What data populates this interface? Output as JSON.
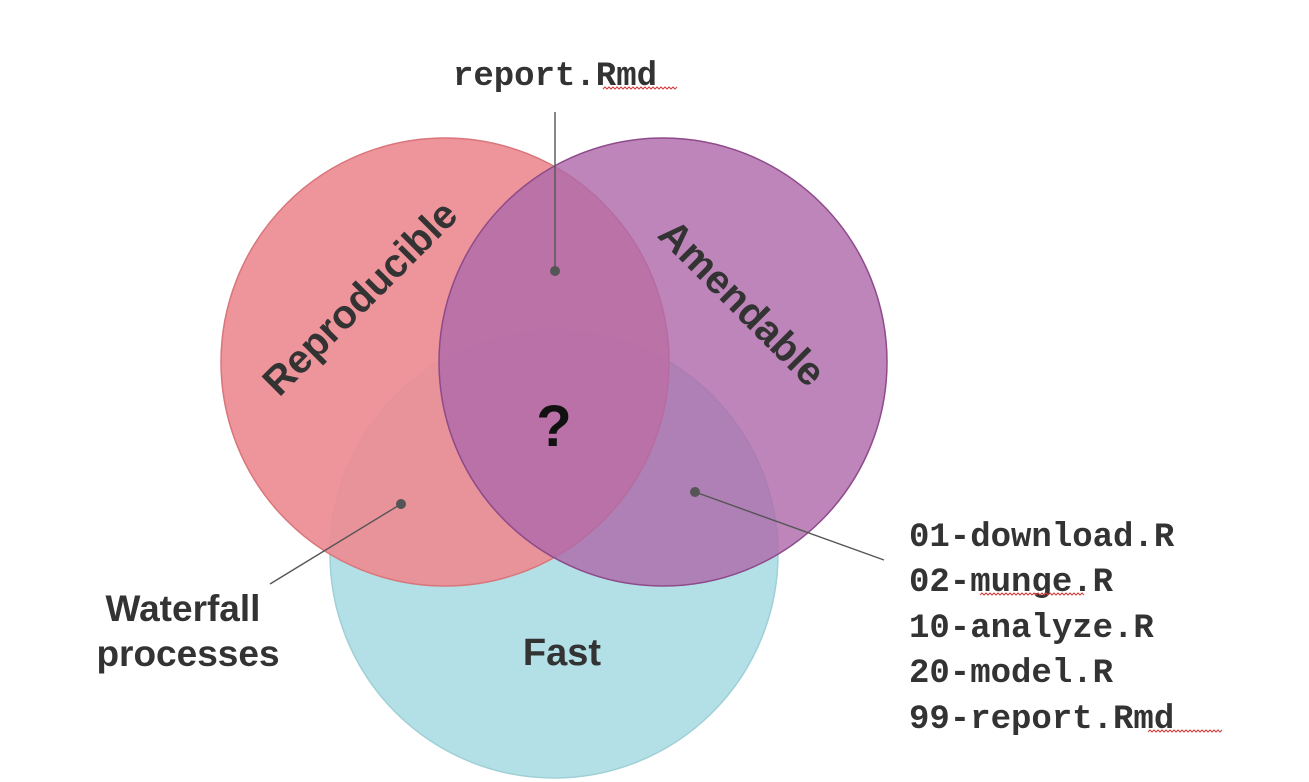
{
  "sets": {
    "reproducible": {
      "label": "Reproducible",
      "color": "#ec8c92"
    },
    "amendable": {
      "label": "Amendable",
      "color": "#ae6aa9"
    },
    "fast": {
      "label": "Fast",
      "color": "#b3e0e6"
    }
  },
  "center_label": "?",
  "callouts": {
    "top": {
      "text": "report.Rmd"
    },
    "left": {
      "lines": [
        "Waterfall",
        "processes"
      ]
    },
    "right": {
      "lines": [
        "01-download.R",
        "02-munge.R",
        "10-analyze.R",
        "20-model.R",
        "99-report.Rmd"
      ]
    }
  },
  "colors": {
    "text": "#333333",
    "connector": "#555555",
    "reproducible_stroke": "#d9767c",
    "amendable_stroke": "#8e4a8b",
    "fast_stroke": "#9fd0d6"
  }
}
